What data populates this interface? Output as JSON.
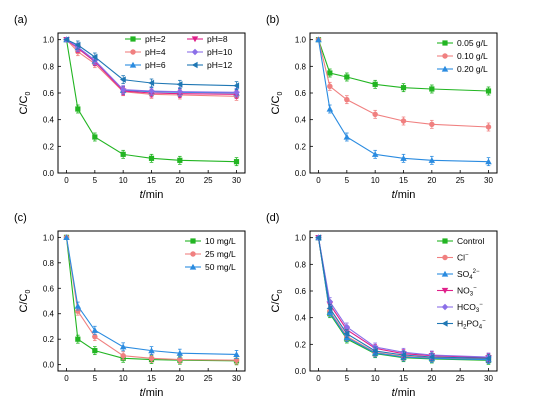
{
  "chart_data": [
    {
      "type": "line",
      "panel_label": "(a)",
      "xlabel": {
        "italic": "t",
        "rest": "/min"
      },
      "ylabel": {
        "main": "C/C",
        "sub": "0"
      },
      "x": [
        0,
        2,
        5,
        10,
        15,
        20,
        30
      ],
      "xticks": [
        "0",
        "5",
        "10",
        "15",
        "20",
        "25",
        "30"
      ],
      "yticks": [
        "0.0",
        "0.2",
        "0.4",
        "0.6",
        "0.8",
        "1.0"
      ],
      "xlim": [
        -1.5,
        31.5
      ],
      "ylim": [
        0,
        1.05
      ],
      "legend_position": "right",
      "legend_columns": 2,
      "series": [
        {
          "name": "pH=2",
          "color": "#22b522",
          "marker": "square",
          "values": [
            1.0,
            0.48,
            0.27,
            0.14,
            0.11,
            0.095,
            0.085
          ]
        },
        {
          "name": "pH=4",
          "color": "#f08080",
          "marker": "circle",
          "values": [
            1.0,
            0.91,
            0.82,
            0.61,
            0.59,
            0.585,
            0.575
          ]
        },
        {
          "name": "pH=6",
          "color": "#2a8be0",
          "marker": "triangle-up",
          "values": [
            1.0,
            0.94,
            0.84,
            0.62,
            0.61,
            0.605,
            0.6
          ]
        },
        {
          "name": "pH=8",
          "color": "#e0208a",
          "marker": "triangle-down",
          "values": [
            1.0,
            0.935,
            0.835,
            0.615,
            0.6,
            0.595,
            0.59
          ]
        },
        {
          "name": "pH=10",
          "color": "#8b6fe8",
          "marker": "diamond",
          "values": [
            1.0,
            0.945,
            0.845,
            0.625,
            0.615,
            0.61,
            0.605
          ]
        },
        {
          "name": "pH=12",
          "color": "#1f77b4",
          "marker": "triangle-left",
          "values": [
            1.0,
            0.96,
            0.87,
            0.7,
            0.675,
            0.665,
            0.655
          ]
        }
      ]
    },
    {
      "type": "line",
      "panel_label": "(b)",
      "xlabel": {
        "italic": "t",
        "rest": "/min"
      },
      "ylabel": {
        "main": "C/C",
        "sub": "0"
      },
      "x": [
        0,
        2,
        5,
        10,
        15,
        20,
        30
      ],
      "xticks": [
        "0",
        "5",
        "10",
        "15",
        "20",
        "25",
        "30"
      ],
      "yticks": [
        "0.0",
        "0.2",
        "0.4",
        "0.6",
        "0.8",
        "1.0"
      ],
      "xlim": [
        -1.5,
        31.5
      ],
      "ylim": [
        0,
        1.05
      ],
      "legend_position": "top-right",
      "legend_columns": 1,
      "series": [
        {
          "name": "0.05 g/L",
          "color": "#22b522",
          "marker": "square",
          "values": [
            1.0,
            0.75,
            0.72,
            0.665,
            0.64,
            0.63,
            0.615
          ]
        },
        {
          "name": "0.10 g/L",
          "color": "#f08080",
          "marker": "circle",
          "values": [
            1.0,
            0.65,
            0.55,
            0.44,
            0.39,
            0.365,
            0.345
          ]
        },
        {
          "name": "0.20 g/L",
          "color": "#2a8be0",
          "marker": "triangle-up",
          "values": [
            1.0,
            0.48,
            0.27,
            0.14,
            0.11,
            0.095,
            0.085
          ]
        }
      ]
    },
    {
      "type": "line",
      "panel_label": "(c)",
      "xlabel": {
        "italic": "t",
        "rest": "/min"
      },
      "ylabel": {
        "main": "C/C",
        "sub": "0"
      },
      "x": [
        0,
        2,
        5,
        10,
        15,
        20,
        30
      ],
      "xticks": [
        "0",
        "5",
        "10",
        "15",
        "20",
        "25",
        "30"
      ],
      "yticks": [
        "0.0",
        "0.2",
        "0.4",
        "0.6",
        "0.8",
        "1.0"
      ],
      "xlim": [
        -1.5,
        31.5
      ],
      "ylim": [
        -0.05,
        1.05
      ],
      "legend_position": "top-right",
      "legend_columns": 1,
      "series": [
        {
          "name": "10 mg/L",
          "color": "#22b522",
          "marker": "square",
          "values": [
            1.0,
            0.2,
            0.11,
            0.05,
            0.04,
            0.035,
            0.03
          ]
        },
        {
          "name": "25 mg/L",
          "color": "#f08080",
          "marker": "circle",
          "values": [
            1.0,
            0.42,
            0.22,
            0.07,
            0.05,
            0.04,
            0.035
          ]
        },
        {
          "name": "50 mg/L",
          "color": "#2a8be0",
          "marker": "triangle-up",
          "values": [
            1.0,
            0.46,
            0.27,
            0.14,
            0.11,
            0.09,
            0.08
          ]
        }
      ]
    },
    {
      "type": "line",
      "panel_label": "(d)",
      "xlabel": {
        "italic": "t",
        "rest": "/min"
      },
      "ylabel": {
        "main": "C/C",
        "sub": "0"
      },
      "x": [
        0,
        2,
        5,
        10,
        15,
        20,
        30
      ],
      "xticks": [
        "0",
        "5",
        "10",
        "15",
        "20",
        "25",
        "30"
      ],
      "yticks": [
        "0.0",
        "0.2",
        "0.4",
        "0.6",
        "0.8",
        "1.0"
      ],
      "xlim": [
        -1.5,
        31.5
      ],
      "ylim": [
        0,
        1.05
      ],
      "legend_position": "top-right",
      "legend_columns": 1,
      "series": [
        {
          "name": "Control",
          "sup": "",
          "sub": "",
          "color": "#22b522",
          "marker": "square",
          "values": [
            1.0,
            0.43,
            0.24,
            0.13,
            0.1,
            0.09,
            0.08
          ]
        },
        {
          "name": "Cl",
          "sup": "−",
          "sub": "",
          "color": "#f08080",
          "marker": "circle",
          "values": [
            1.0,
            0.45,
            0.26,
            0.14,
            0.11,
            0.1,
            0.09
          ]
        },
        {
          "name": "SO",
          "sub": "4",
          "sup": "2−",
          "color": "#2a8be0",
          "marker": "triangle-up",
          "values": [
            1.0,
            0.44,
            0.25,
            0.135,
            0.105,
            0.095,
            0.085
          ]
        },
        {
          "name": "NO",
          "sub": "3",
          "sup": "−",
          "color": "#e0208a",
          "marker": "triangle-down",
          "values": [
            1.0,
            0.5,
            0.31,
            0.17,
            0.13,
            0.115,
            0.1
          ]
        },
        {
          "name": "HCO",
          "sub": "3",
          "sup": "−",
          "color": "#8b6fe8",
          "marker": "diamond",
          "values": [
            1.0,
            0.52,
            0.33,
            0.18,
            0.14,
            0.12,
            0.105
          ]
        },
        {
          "name": "H",
          "sub": "2",
          "name2": "PO",
          "sub2": "4",
          "sup": "−",
          "color": "#1f77b4",
          "marker": "triangle-left",
          "values": [
            1.0,
            0.47,
            0.28,
            0.15,
            0.12,
            0.105,
            0.095
          ]
        }
      ]
    }
  ]
}
